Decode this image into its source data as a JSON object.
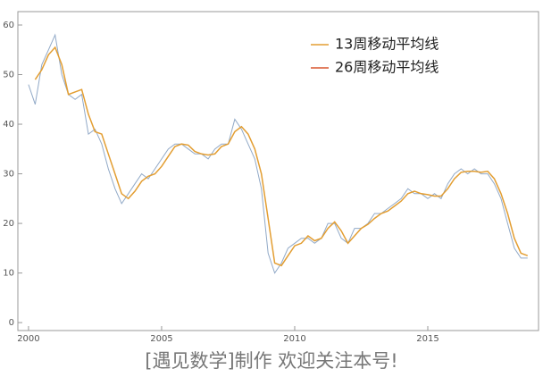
{
  "chart_data": {
    "type": "line",
    "annotation": "[遇见数学]制作   欢迎关注本号!",
    "x": [
      2000.0,
      2000.25,
      2000.5,
      2000.75,
      2001.0,
      2001.25,
      2001.5,
      2001.75,
      2002.0,
      2002.25,
      2002.5,
      2002.75,
      2003.0,
      2003.25,
      2003.5,
      2003.75,
      2004.0,
      2004.25,
      2004.5,
      2004.75,
      2005.0,
      2005.25,
      2005.5,
      2005.75,
      2006.0,
      2006.25,
      2006.5,
      2006.75,
      2007.0,
      2007.25,
      2007.5,
      2007.75,
      2008.0,
      2008.25,
      2008.5,
      2008.75,
      2009.0,
      2009.25,
      2009.5,
      2009.75,
      2010.0,
      2010.25,
      2010.5,
      2010.75,
      2011.0,
      2011.25,
      2011.5,
      2011.75,
      2012.0,
      2012.25,
      2012.5,
      2012.75,
      2013.0,
      2013.25,
      2013.5,
      2013.75,
      2014.0,
      2014.25,
      2014.5,
      2014.75,
      2015.0,
      2015.25,
      2015.5,
      2015.75,
      2016.0,
      2016.25,
      2016.5,
      2016.75,
      2017.0,
      2017.25,
      2017.5,
      2017.75,
      2018.0,
      2018.25,
      2018.5,
      2018.75
    ],
    "series": [
      {
        "color": "#91a9c7",
        "values": [
          48,
          44,
          52,
          55,
          58,
          50,
          46,
          45,
          46,
          38,
          39,
          36,
          31,
          27,
          24,
          26,
          28,
          30,
          29,
          31,
          33,
          35,
          36,
          36,
          35,
          34,
          34,
          33,
          35,
          36,
          36,
          41,
          39,
          36,
          33,
          27,
          14,
          10,
          12,
          15,
          16,
          17,
          17,
          16,
          17,
          20,
          20,
          17,
          16,
          19,
          19,
          20,
          22,
          22,
          23,
          24,
          25,
          27,
          26,
          26,
          25,
          26,
          25,
          28,
          30,
          31,
          30,
          31,
          30,
          30,
          28,
          25,
          20,
          15,
          13,
          13
        ]
      },
      {
        "name": "13周移动平均线",
        "color": "#e39e32",
        "values": [
          null,
          49,
          51,
          54,
          55.5,
          52,
          46,
          46.5,
          47,
          42,
          38.5,
          38,
          34,
          30,
          26,
          25,
          26.5,
          28.5,
          29.5,
          30,
          31.5,
          33.5,
          35.5,
          36,
          35.8,
          34.5,
          34,
          33.8,
          34,
          35.5,
          36,
          38.5,
          39.5,
          38,
          35,
          30,
          21,
          12,
          11.5,
          13.5,
          15.5,
          16,
          17.5,
          16.5,
          17,
          19,
          20.3,
          18.5,
          16,
          17.5,
          19,
          19.8,
          21,
          22,
          22.5,
          23.5,
          24.5,
          26,
          26.5,
          26,
          25.8,
          25.5,
          25.5,
          27,
          29,
          30.3,
          30.5,
          30.5,
          30.3,
          30.5,
          29,
          26,
          22,
          17,
          14,
          13.5
        ]
      },
      {
        "name": "26周移动平均线",
        "color": "#d9572f",
        "values": [
          null,
          null,
          null,
          null,
          null,
          null,
          null,
          null,
          null,
          null,
          null,
          null,
          null,
          null,
          null,
          null,
          null,
          null,
          null,
          null,
          null,
          null,
          null,
          null,
          null,
          null,
          null,
          null,
          null,
          null,
          null,
          null,
          null,
          null,
          null,
          null,
          null,
          null,
          null,
          null,
          null,
          null,
          null,
          null,
          null,
          null,
          null,
          null,
          null,
          null,
          null,
          null,
          null,
          null,
          null,
          null,
          null,
          null,
          null,
          null,
          null,
          null,
          null,
          null,
          null,
          null,
          null,
          null,
          null,
          null,
          null,
          null,
          null,
          null,
          null,
          null
        ]
      }
    ],
    "xlim": [
      1999.6,
      2019.16
    ],
    "xticks": [
      2000,
      2005,
      2010,
      2015
    ],
    "ylim": [
      -1.6,
      62.7
    ],
    "yticks": [
      0,
      10,
      20,
      30,
      40,
      50,
      60
    ],
    "legend": "upper right"
  }
}
